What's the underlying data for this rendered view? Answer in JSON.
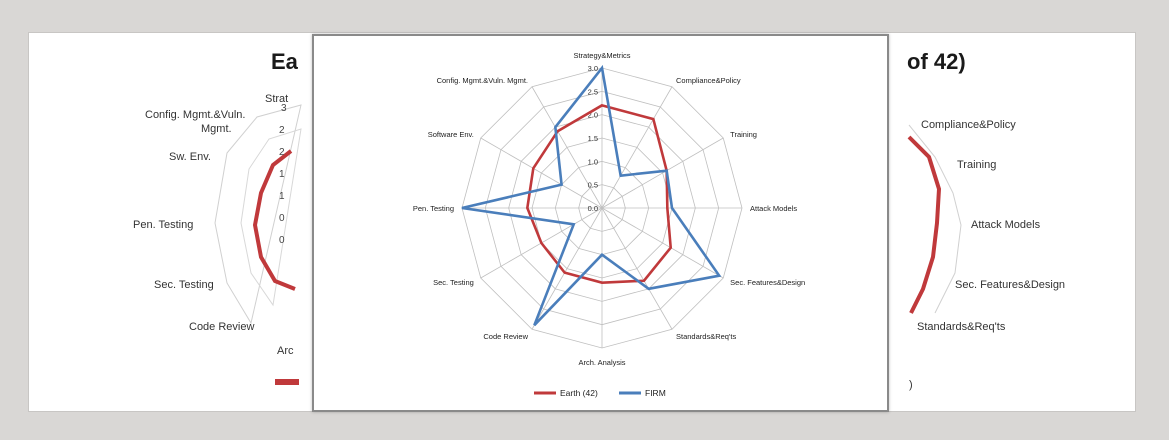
{
  "colors": {
    "earth": "#c0393b",
    "firm": "#4a7ebb",
    "grid": "#bfbfbf",
    "page_bg": "#d9d7d5"
  },
  "background_slide": {
    "title_left": "Ea",
    "title_right": "of 42)",
    "labels_left": {
      "strategy": "Strat",
      "config": "Config. Mgmt.&Vuln.",
      "config2": "Mgmt.",
      "sw_env": "Sw. Env.",
      "pen": "Pen. Testing",
      "sec_testing": "Sec. Testing",
      "code_review": "Code Review",
      "arch": "Arc"
    },
    "ticks_left": [
      "3",
      "2",
      "2",
      "1",
      "1",
      "0",
      "0"
    ],
    "labels_right": {
      "compliance": "Compliance&Policy",
      "training": "Training",
      "attack": "Attack Models",
      "sec_features": "Sec. Features&Design",
      "standards": "Standards&Req'ts",
      "legend_tail": ")"
    }
  },
  "chart_data": {
    "type": "radar",
    "categories": [
      "Strategy&Metrics",
      "Compliance&Policy",
      "Training",
      "Attack Models",
      "Sec. Features&Design",
      "Standards&Req'ts",
      "Arch. Analysis",
      "Code Review",
      "Sec. Testing",
      "Pen. Testing",
      "Software Env.",
      "Config. Mgmt.&Vuln. Mgmt."
    ],
    "ticks": [
      "0.0",
      "0.5",
      "1.0",
      "1.5",
      "2.0",
      "2.5",
      "3.0"
    ],
    "rlim": [
      0,
      3
    ],
    "grid": true,
    "legend_position": "bottom",
    "series": [
      {
        "name": "Earth (42)",
        "values": [
          2.2,
          2.2,
          1.6,
          1.4,
          1.7,
          1.8,
          1.6,
          1.6,
          1.5,
          1.6,
          1.7,
          1.9
        ]
      },
      {
        "name": "FIRM",
        "values": [
          3.0,
          0.8,
          1.6,
          1.5,
          2.9,
          2.0,
          1.0,
          2.9,
          0.7,
          3.0,
          1.0,
          2.0
        ]
      }
    ]
  }
}
